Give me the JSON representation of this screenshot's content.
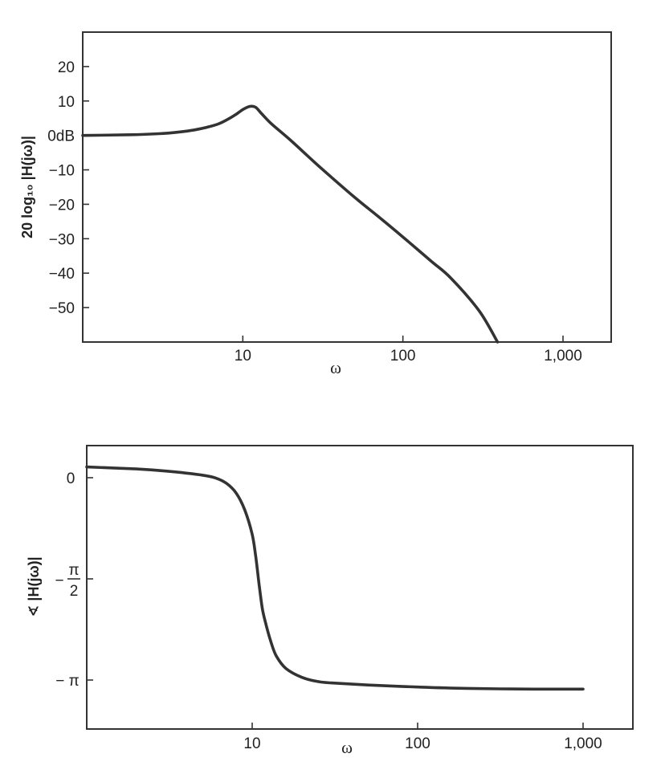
{
  "chart_data": [
    {
      "type": "line",
      "xscale": "log",
      "xlabel": "ω",
      "ylabel": "20 log₁₀ |H(jω)|",
      "xlim": [
        1,
        2000
      ],
      "ylim": [
        -60,
        30
      ],
      "x_ticks": [
        {
          "value": 10,
          "label": "10"
        },
        {
          "value": 100,
          "label": "100"
        },
        {
          "value": 1000,
          "label": "1,000"
        }
      ],
      "y_ticks": [
        {
          "value": 20,
          "label": "20"
        },
        {
          "value": 10,
          "label": "10"
        },
        {
          "value": 0,
          "label": "0dB"
        },
        {
          "value": -10,
          "label": "−10"
        },
        {
          "value": -20,
          "label": "−20"
        },
        {
          "value": -30,
          "label": "−30"
        },
        {
          "value": -40,
          "label": "−40"
        },
        {
          "value": -50,
          "label": "−50"
        }
      ],
      "series": [
        {
          "x": [
            1,
            2,
            3,
            4,
            5,
            6,
            7,
            8,
            9,
            10,
            11,
            12,
            13,
            15,
            20,
            30,
            50,
            70,
            100,
            150,
            200,
            300,
            390
          ],
          "y": [
            0,
            0.2,
            0.5,
            1,
            1.6,
            2.4,
            3.3,
            4.6,
            6,
            7.5,
            8.4,
            8.2,
            6.5,
            3.5,
            -1.5,
            -9,
            -18,
            -23.5,
            -29.5,
            -36.5,
            -41.5,
            -51,
            -60
          ]
        }
      ]
    },
    {
      "type": "line",
      "xscale": "log",
      "xlabel": "ω",
      "ylabel": "∢ |H(jω)|",
      "xlim": [
        1,
        2000
      ],
      "ylim": [
        -3.81,
        0.31
      ],
      "x_ticks": [
        {
          "value": 10,
          "label": "10"
        },
        {
          "value": 100,
          "label": "100"
        },
        {
          "value": 1000,
          "label": "1,000"
        }
      ],
      "y_ticks": [
        {
          "value": 0,
          "label": "0"
        },
        {
          "value": -1.5708,
          "label": "−π/2"
        },
        {
          "value": -3.1416,
          "label": "−π"
        }
      ],
      "y_tick_labels": {
        "zero": "0",
        "half_pi_num": "π",
        "half_pi_den": "2",
        "pi": "− π"
      },
      "series": [
        {
          "x": [
            1,
            2,
            3,
            4,
            5,
            6,
            7,
            8,
            9,
            10,
            10.5,
            11,
            11.5,
            12,
            13,
            14,
            16,
            20,
            25,
            30,
            50,
            100,
            200,
            500,
            1000
          ],
          "y": [
            0,
            -0.03,
            -0.06,
            -0.09,
            -0.12,
            -0.16,
            -0.24,
            -0.38,
            -0.62,
            -0.98,
            -1.3,
            -1.7,
            -2.05,
            -2.25,
            -2.55,
            -2.75,
            -2.93,
            -3.06,
            -3.12,
            -3.14,
            -3.17,
            -3.2,
            -3.22,
            -3.23,
            -3.23
          ]
        }
      ]
    }
  ]
}
